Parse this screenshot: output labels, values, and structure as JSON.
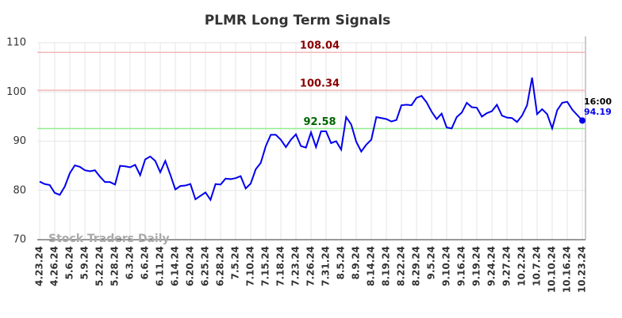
{
  "chart_data": {
    "type": "line",
    "title": "PLMR Long Term Signals",
    "watermark": "Stock Traders Daily",
    "categories": [
      "4.23.24",
      null,
      null,
      "4.26.24",
      null,
      null,
      "5.6.24",
      null,
      null,
      "5.9.24",
      null,
      null,
      "5.22.24",
      null,
      null,
      "5.28.24",
      null,
      null,
      "6.3.24",
      null,
      null,
      "6.6.24",
      null,
      null,
      "6.11.24",
      null,
      null,
      "6.14.24",
      null,
      null,
      "6.20.24",
      null,
      null,
      "6.25.24",
      null,
      null,
      "6.28.24",
      null,
      null,
      "7.5.24",
      null,
      null,
      "7.10.24",
      null,
      null,
      "7.15.24",
      null,
      null,
      "7.18.24",
      null,
      null,
      "7.23.24",
      null,
      null,
      "7.26.24",
      null,
      null,
      "7.31.24",
      null,
      null,
      "8.5.24",
      null,
      null,
      "8.9.24",
      null,
      null,
      "8.14.24",
      null,
      null,
      "8.19.24",
      null,
      null,
      "8.22.24",
      null,
      null,
      "8.29.24",
      null,
      null,
      "9.5.24",
      null,
      null,
      "9.10.24",
      null,
      null,
      "9.16.24",
      null,
      null,
      "9.19.24",
      null,
      null,
      "9.24.24",
      null,
      null,
      "9.27.24",
      null,
      null,
      "10.2.24",
      null,
      null,
      "10.7.24",
      null,
      null,
      "10.10.24",
      null,
      null,
      "10.16.24",
      null,
      null,
      "10.23.24"
    ],
    "series": [
      {
        "name": "PLMR",
        "color": "#0000ee",
        "values": [
          81.8,
          81.3,
          81.1,
          79.5,
          79.1,
          80.8,
          83.5,
          85.1,
          84.8,
          84.1,
          83.9,
          84.1,
          82.8,
          81.7,
          81.7,
          81.2,
          85,
          84.9,
          84.7,
          85.2,
          83.1,
          86.3,
          86.9,
          86.0,
          83.7,
          86.0,
          83.2,
          80.2,
          80.9,
          81.0,
          81.3,
          78.2,
          78.9,
          79.6,
          78.1,
          81.3,
          81.2,
          82.4,
          82.3,
          82.5,
          82.9,
          80.4,
          81.4,
          84.3,
          85.6,
          89.0,
          91.3,
          91.3,
          90.3,
          88.8,
          90.3,
          91.4,
          89.0,
          88.7,
          91.8,
          88.8,
          92.0,
          92.0,
          89.6,
          90.0,
          88.3,
          94.9,
          93.4,
          89.9,
          87.9,
          89.3,
          90.3,
          94.9,
          94.7,
          94.5,
          94.0,
          94.3,
          97.3,
          97.4,
          97.3,
          98.8,
          99.2,
          97.9,
          96.0,
          94.5,
          95.6,
          92.8,
          92.6,
          94.9,
          95.8,
          97.8,
          96.9,
          96.8,
          95.0,
          95.7,
          96.1,
          97.4,
          95.2,
          94.8,
          94.7,
          93.9,
          95.2,
          97.3,
          102.9,
          95.5,
          96.5,
          95.5,
          92.6,
          96.3,
          97.8,
          98.0,
          96.4,
          95.3,
          94.19
        ]
      }
    ],
    "last_time": "16:00",
    "hlines": [
      {
        "value": 108.04,
        "color": "#f4b8b8",
        "label_color": "#8b0000"
      },
      {
        "value": 100.34,
        "color": "#f4b8b8",
        "label_color": "#8b0000"
      },
      {
        "value": 92.58,
        "color": "#90ee90",
        "label_color": "#006400"
      }
    ],
    "ylim": [
      70,
      110
    ],
    "yticks": [
      70,
      80,
      90,
      100,
      110
    ],
    "grid": true
  }
}
